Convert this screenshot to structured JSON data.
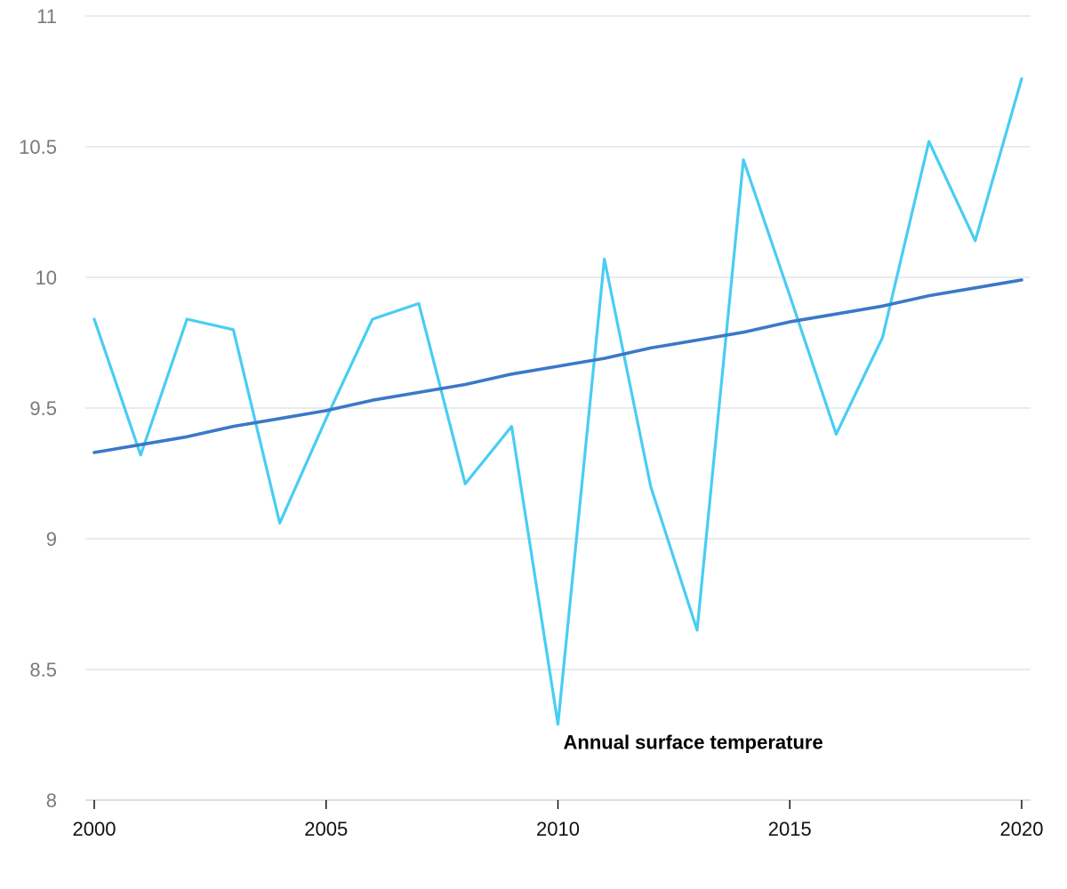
{
  "chart_data": {
    "type": "line",
    "title": "",
    "xlabel": "",
    "ylabel": "",
    "xlim": [
      2000,
      2020
    ],
    "ylim": [
      8,
      11
    ],
    "y_ticks": [
      "8",
      "8.5",
      "9",
      "9.5",
      "10",
      "10.5",
      "11"
    ],
    "x_ticks": [
      "2000",
      "2005",
      "2010",
      "2015",
      "2020"
    ],
    "grid": "horizontal",
    "legend": "none",
    "x": [
      2000,
      2001,
      2002,
      2003,
      2004,
      2005,
      2006,
      2007,
      2008,
      2009,
      2010,
      2011,
      2012,
      2013,
      2014,
      2015,
      2016,
      2017,
      2018,
      2019,
      2020
    ],
    "series": [
      {
        "color": "#48cdf3",
        "values": [
          9.84,
          9.32,
          9.84,
          9.8,
          9.06,
          9.46,
          9.84,
          9.9,
          9.21,
          9.43,
          8.29,
          10.07,
          9.2,
          8.65,
          10.45,
          9.93,
          9.4,
          9.77,
          10.52,
          10.14,
          10.76
        ]
      },
      {
        "color": "#3b78c8",
        "values": [
          9.33,
          9.36,
          9.39,
          9.43,
          9.46,
          9.49,
          9.53,
          9.56,
          9.59,
          9.63,
          9.66,
          9.69,
          9.73,
          9.76,
          9.79,
          9.83,
          9.86,
          9.89,
          9.93,
          9.96,
          9.99
        ]
      }
    ],
    "annotations": [
      {
        "text": "Annual surface temperature",
        "x": 2010,
        "y": 8.29
      }
    ]
  }
}
